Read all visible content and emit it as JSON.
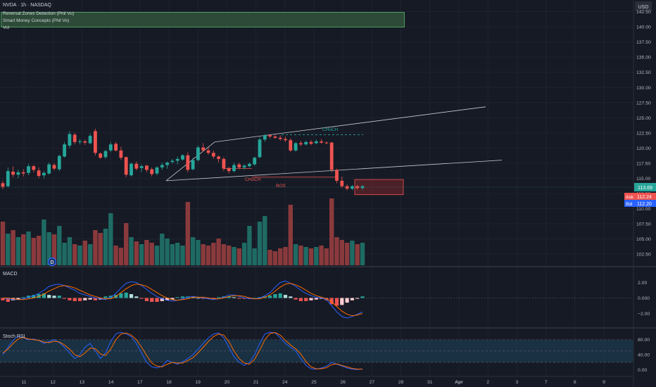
{
  "header": {
    "title": "NVDA · 1h · NASDAQ",
    "currency": "USD",
    "indicators": [
      "Reversal Zones Detection (Phil Vo)",
      "Smart Money Concepts (Phil Vo)",
      "Vol"
    ]
  },
  "price_axis": {
    "ticks": [
      "142.50",
      "140.00",
      "137.50",
      "135.00",
      "132.50",
      "130.00",
      "127.50",
      "125.00",
      "122.50",
      "120.00",
      "117.50",
      "115.00",
      "112.50",
      "110.00",
      "107.50",
      "105.00",
      "102.50"
    ],
    "current_price": "113.69",
    "ask_label": "Ask",
    "ask_value": "112.24",
    "bid_label": "Bid",
    "bid_value": "112.20"
  },
  "annotations": {
    "choch_top": "CHoCH",
    "choch_bottom": "CHoCH",
    "bos": "BOS",
    "volume_marker": "D"
  },
  "macd": {
    "title": "MACD",
    "ticks": [
      "2.00",
      "0.000",
      "−2.00"
    ]
  },
  "stoch_rsi": {
    "title": "Stoch RSI",
    "ticks": [
      "80.00",
      "40.00",
      "0.00"
    ]
  },
  "time_axis": [
    "11",
    "12",
    "13",
    "14",
    "17",
    "18",
    "19",
    "20",
    "21",
    "24",
    "25",
    "26",
    "27",
    "28",
    "31",
    "Apr",
    "2",
    "3",
    "7",
    "8",
    "9"
  ],
  "colors": {
    "background": "#161a25",
    "up": "#26a69a",
    "down": "#ef5350",
    "volume_up": "#1f6b64",
    "volume_down": "#8a3a3c",
    "macd_line": "#2962ff",
    "signal_line": "#ff6d00",
    "stoch_k": "#2962ff",
    "stoch_d": "#ff6d00",
    "band_fill": "#1c3a4d",
    "zone_fill": "#5a2228",
    "indicator_box": "#2c4a37"
  },
  "chart_data": [
    {
      "type": "candlestick",
      "ylim": [
        101,
        143.5
      ],
      "ohlc": [
        [
          114.2,
          114.6,
          113.2,
          113.6
        ],
        [
          113.7,
          116.8,
          113.5,
          116.2
        ],
        [
          116.1,
          117.0,
          115.2,
          115.6
        ],
        [
          115.6,
          116.4,
          115.0,
          116.0
        ],
        [
          116.0,
          116.5,
          115.3,
          115.8
        ],
        [
          115.9,
          117.4,
          115.5,
          117.0
        ],
        [
          117.0,
          117.2,
          116.0,
          116.4
        ],
        [
          116.3,
          116.8,
          115.0,
          115.4
        ],
        [
          115.5,
          116.2,
          115.0,
          115.9
        ],
        [
          115.8,
          117.6,
          115.6,
          117.3
        ],
        [
          117.2,
          117.5,
          116.3,
          116.6
        ],
        [
          116.5,
          118.9,
          116.2,
          118.7
        ],
        [
          118.6,
          121.0,
          118.4,
          120.6
        ],
        [
          120.4,
          122.8,
          120.0,
          122.3
        ],
        [
          122.2,
          122.5,
          120.6,
          121.0
        ],
        [
          121.0,
          121.5,
          120.6,
          121.1
        ],
        [
          121.1,
          121.4,
          120.5,
          120.9
        ],
        [
          120.8,
          122.4,
          120.6,
          122.0
        ],
        [
          122.8,
          123.2,
          118.8,
          119.2
        ],
        [
          119.1,
          119.3,
          118.2,
          118.4
        ],
        [
          118.5,
          119.7,
          118.2,
          119.5
        ],
        [
          119.6,
          121.0,
          119.3,
          120.6
        ],
        [
          120.7,
          121.0,
          119.4,
          119.6
        ],
        [
          119.6,
          120.2,
          118.0,
          118.4
        ],
        [
          118.5,
          118.6,
          115.2,
          115.6
        ],
        [
          115.5,
          117.6,
          115.3,
          117.4
        ],
        [
          117.4,
          117.8,
          116.3,
          116.6
        ],
        [
          116.7,
          117.3,
          116.0,
          117.0
        ],
        [
          117.1,
          117.2,
          116.0,
          116.4
        ],
        [
          116.5,
          116.8,
          115.3,
          115.7
        ],
        [
          115.8,
          117.0,
          115.5,
          116.8
        ],
        [
          116.8,
          117.6,
          116.4,
          117.2
        ],
        [
          117.2,
          117.8,
          116.6,
          117.6
        ],
        [
          117.7,
          118.2,
          117.4,
          117.9
        ],
        [
          117.9,
          118.6,
          117.3,
          118.2
        ],
        [
          118.1,
          119.0,
          117.9,
          118.8
        ],
        [
          118.8,
          119.3,
          116.0,
          116.4
        ],
        [
          116.5,
          118.4,
          116.3,
          118.0
        ],
        [
          118.0,
          120.4,
          117.8,
          120.1
        ],
        [
          120.1,
          120.8,
          119.4,
          119.6
        ],
        [
          119.6,
          120.1,
          118.9,
          119.2
        ],
        [
          119.2,
          119.6,
          118.2,
          118.6
        ],
        [
          118.6,
          118.8,
          117.6,
          118.2
        ],
        [
          118.2,
          118.5,
          116.2,
          116.6
        ],
        [
          116.7,
          116.9,
          115.8,
          116.2
        ],
        [
          116.2,
          117.6,
          116.0,
          117.2
        ],
        [
          117.3,
          117.6,
          116.5,
          116.8
        ],
        [
          116.8,
          117.3,
          116.4,
          117.1
        ],
        [
          117.0,
          117.6,
          116.8,
          117.4
        ],
        [
          117.3,
          118.6,
          117.1,
          118.4
        ],
        [
          118.5,
          121.8,
          118.3,
          121.4
        ],
        [
          121.4,
          122.3,
          121.0,
          122.1
        ],
        [
          122.1,
          122.3,
          121.6,
          121.9
        ],
        [
          121.9,
          122.2,
          121.5,
          121.7
        ],
        [
          121.7,
          122.1,
          121.2,
          121.5
        ],
        [
          121.5,
          121.9,
          121.0,
          121.3
        ],
        [
          121.3,
          121.6,
          119.3,
          119.6
        ],
        [
          119.6,
          121.0,
          119.4,
          120.8
        ],
        [
          120.8,
          121.2,
          120.3,
          120.6
        ],
        [
          120.6,
          121.2,
          120.4,
          121.0
        ],
        [
          121.0,
          121.3,
          120.5,
          120.7
        ],
        [
          120.8,
          121.4,
          120.6,
          121.1
        ],
        [
          121.1,
          121.5,
          120.7,
          120.9
        ],
        [
          120.9,
          121.1,
          120.6,
          120.8
        ],
        [
          120.9,
          121.0,
          116.0,
          116.4
        ],
        [
          116.4,
          116.6,
          114.2,
          114.6
        ],
        [
          114.6,
          115.3,
          113.4,
          113.7
        ],
        [
          113.7,
          114.0,
          113.0,
          113.3
        ],
        [
          113.3,
          113.9,
          113.0,
          113.7
        ],
        [
          113.7,
          113.9,
          113.1,
          113.4
        ],
        [
          113.4,
          113.9,
          113.1,
          113.7
        ]
      ],
      "volume": [
        62,
        45,
        50,
        40,
        44,
        48,
        39,
        42,
        65,
        47,
        44,
        56,
        32,
        40,
        30,
        28,
        35,
        30,
        50,
        46,
        52,
        74,
        28,
        25,
        60,
        40,
        34,
        30,
        36,
        32,
        28,
        45,
        38,
        30,
        32,
        28,
        90,
        40,
        36,
        30,
        28,
        32,
        38,
        30,
        28,
        26,
        24,
        32,
        56,
        24,
        62,
        70,
        22,
        20,
        24,
        26,
        86,
        30,
        28,
        26,
        24,
        26,
        28,
        24,
        95,
        40,
        36,
        32,
        35,
        30,
        32
      ]
    },
    {
      "type": "line",
      "title": "MACD",
      "ylim": [
        -3.5,
        3.5
      ],
      "series": [
        {
          "name": "MACD",
          "values": [
            0.0,
            -0.1,
            -0.2,
            -0.2,
            -0.1,
            0.1,
            0.3,
            0.6,
            1.0,
            1.5,
            1.7,
            1.8,
            1.6,
            1.3,
            1.0,
            0.6,
            0.4,
            0.2,
            0.0,
            -0.1,
            -0.2,
            0.1,
            0.6,
            1.3,
            1.9,
            2.1,
            2.0,
            1.6,
            1.1,
            0.6,
            0.2,
            -0.1,
            -0.3,
            -0.4,
            -0.3,
            -0.1,
            0.1,
            0.2,
            0.1,
            0.0,
            -0.1,
            -0.2,
            -0.1,
            0.1,
            0.4,
            0.4,
            0.2,
            0.0,
            -0.1,
            -0.1,
            0.0,
            0.3,
            0.7,
            1.4,
            2.0,
            2.2,
            1.9,
            1.5,
            1.0,
            0.6,
            0.3,
            0.1,
            0.0,
            -0.2,
            -1.0,
            -1.8,
            -2.4,
            -2.6,
            -2.4,
            -2.1,
            -1.8
          ]
        },
        {
          "name": "Signal",
          "values": [
            0.0,
            0.0,
            -0.1,
            -0.2,
            -0.2,
            -0.1,
            0.0,
            0.2,
            0.5,
            0.9,
            1.2,
            1.5,
            1.6,
            1.5,
            1.3,
            1.0,
            0.7,
            0.4,
            0.2,
            0.0,
            -0.1,
            -0.1,
            0.2,
            0.7,
            1.2,
            1.6,
            1.8,
            1.7,
            1.5,
            1.1,
            0.7,
            0.3,
            0.0,
            -0.2,
            -0.3,
            -0.2,
            -0.1,
            0.1,
            0.1,
            0.1,
            0.0,
            -0.1,
            -0.1,
            0.0,
            0.2,
            0.3,
            0.3,
            0.2,
            0.0,
            -0.1,
            -0.1,
            0.1,
            0.4,
            0.9,
            1.4,
            1.8,
            1.9,
            1.7,
            1.4,
            1.0,
            0.6,
            0.3,
            0.1,
            -0.1,
            -0.5,
            -1.1,
            -1.7,
            -2.1,
            -2.3,
            -2.2,
            -2.0
          ]
        }
      ],
      "histogram": [
        -0.3,
        -0.5,
        -0.3,
        -0.2,
        0.1,
        0.3,
        0.4,
        0.5,
        0.6,
        0.4,
        0.3,
        0.3,
        -0.1,
        -0.3,
        -0.4,
        -0.4,
        -0.3,
        -0.2,
        -0.3,
        -0.2,
        0.2,
        0.3,
        0.4,
        0.6,
        0.7,
        0.5,
        0.2,
        -0.1,
        -0.4,
        -0.5,
        -0.5,
        -0.4,
        -0.3,
        -0.2,
        0.1,
        0.2,
        0.2,
        0.1,
        0.0,
        -0.1,
        -0.1,
        -0.1,
        0.1,
        0.2,
        0.2,
        0.1,
        -0.1,
        -0.1,
        -0.1,
        0.0,
        0.1,
        0.2,
        0.3,
        0.5,
        0.6,
        0.4,
        0.2,
        -0.2,
        -0.4,
        -0.4,
        -0.3,
        -0.2,
        -0.1,
        -0.3,
        -0.8,
        -1.0,
        -0.9,
        -0.6,
        -0.3,
        -0.1,
        0.2
      ]
    },
    {
      "type": "line",
      "title": "Stoch RSI",
      "ylim": [
        -8,
        100
      ],
      "bands": [
        20,
        80
      ],
      "series": [
        {
          "name": "K",
          "values": [
            40,
            60,
            78,
            90,
            85,
            80,
            82,
            78,
            70,
            75,
            80,
            72,
            60,
            45,
            30,
            40,
            60,
            70,
            50,
            30,
            45,
            75,
            95,
            100,
            95,
            88,
            70,
            45,
            20,
            8,
            5,
            10,
            25,
            20,
            15,
            22,
            30,
            40,
            55,
            70,
            85,
            95,
            98,
            85,
            60,
            35,
            20,
            12,
            20,
            40,
            70,
            95,
            100,
            98,
            85,
            70,
            60,
            50,
            30,
            12,
            3,
            2,
            5,
            10,
            20,
            15,
            10,
            5,
            2,
            1,
            3
          ]
        },
        {
          "name": "D",
          "values": [
            45,
            55,
            70,
            82,
            86,
            82,
            80,
            78,
            74,
            72,
            76,
            74,
            66,
            55,
            40,
            35,
            45,
            58,
            56,
            42,
            38,
            55,
            80,
            95,
            98,
            92,
            80,
            60,
            38,
            18,
            10,
            8,
            15,
            20,
            18,
            18,
            25,
            32,
            45,
            60,
            75,
            88,
            95,
            92,
            75,
            50,
            30,
            18,
            15,
            28,
            52,
            80,
            96,
            99,
            92,
            78,
            66,
            56,
            42,
            22,
            8,
            3,
            3,
            6,
            14,
            16,
            12,
            8,
            4,
            2,
            2
          ]
        }
      ]
    }
  ]
}
